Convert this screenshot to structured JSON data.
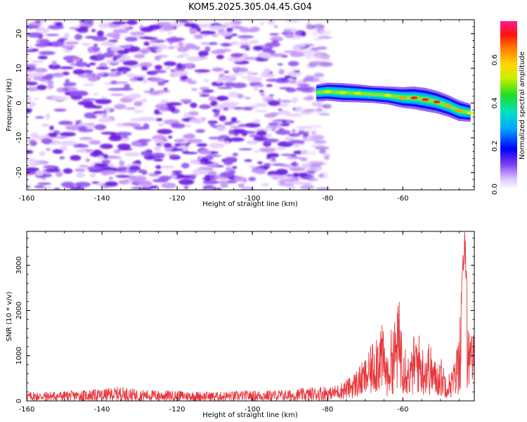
{
  "chart_data": [
    {
      "type": "heatmap",
      "title": "KOM5.2025.305.04.45.G04",
      "xlabel": "Height of straight line (km)",
      "ylabel": "Frequency (Hz)",
      "xlim": [
        -160,
        -41
      ],
      "ylim": [
        -25,
        24
      ],
      "x_ticks": [
        -160,
        -140,
        -120,
        -100,
        -80,
        -60
      ],
      "x_tick_labels": [
        "-160",
        "-140",
        "-120",
        "-100",
        "-80",
        "-60"
      ],
      "y_ticks": [
        -20,
        -10,
        0,
        10,
        20
      ],
      "y_tick_labels": [
        "-20",
        "-10",
        "0",
        "10",
        "20"
      ],
      "noise_region_x": [
        -160,
        -84
      ],
      "signal_ridge": {
        "x": [
          -83,
          -80,
          -76,
          -72,
          -68,
          -64,
          -60,
          -57,
          -54,
          -51,
          -48,
          -45,
          -42
        ],
        "y": [
          3,
          3.3,
          3,
          2.8,
          2.5,
          2.2,
          1.6,
          1.5,
          1,
          0.3,
          -0.8,
          -2.2,
          -2.8
        ],
        "amplitude": [
          0.3,
          0.4,
          0.45,
          0.4,
          0.35,
          0.4,
          0.55,
          0.65,
          0.7,
          0.65,
          0.6,
          0.55,
          0.4
        ]
      },
      "colorbar": {
        "label": "Normalized spectral amplitude",
        "range": [
          0,
          0.78
        ],
        "ticks": [
          0,
          0.2,
          0.4,
          0.6
        ],
        "tick_labels": [
          "0.0",
          "0.2",
          "0.4",
          "0.6"
        ]
      }
    },
    {
      "type": "line",
      "xlabel": "Height of straight line (km)",
      "ylabel": "SNR (10 * v/v)",
      "xlim": [
        -160,
        -41
      ],
      "ylim": [
        0,
        3750
      ],
      "x_ticks": [
        -160,
        -140,
        -120,
        -100,
        -80,
        -60
      ],
      "x_tick_labels": [
        "-160",
        "-140",
        "-120",
        "-100",
        "-80",
        "-60"
      ],
      "y_ticks": [
        0,
        1000,
        2000,
        3000
      ],
      "y_tick_labels": [
        "0",
        "1000",
        "2000",
        "3000"
      ],
      "color": "#e8383d",
      "series": [
        {
          "name": "SNR",
          "x": [
            -160,
            -150,
            -140,
            -135,
            -130,
            -120,
            -110,
            -100,
            -90,
            -85,
            -80,
            -77,
            -74,
            -71,
            -69,
            -67,
            -66,
            -65,
            -64,
            -63,
            -62,
            -61,
            -60,
            -59,
            -58,
            -57,
            -56,
            -55,
            -54,
            -53,
            -52,
            -51,
            -50,
            -49,
            -48,
            -47,
            -46,
            -45,
            -44.5,
            -44,
            -43.5,
            -43,
            -42.5,
            -42,
            -41.5,
            -41
          ],
          "y": [
            130,
            140,
            170,
            210,
            160,
            150,
            130,
            150,
            160,
            190,
            230,
            320,
            450,
            700,
            900,
            1400,
            1550,
            1250,
            800,
            1400,
            1550,
            1900,
            1500,
            1000,
            800,
            1250,
            1350,
            1050,
            1000,
            1150,
            850,
            700,
            850,
            650,
            500,
            600,
            800,
            1500,
            2300,
            3100,
            3600,
            2800,
            1500,
            1100,
            1650,
            1000
          ]
        }
      ]
    }
  ],
  "colors": {
    "noise_palette": [
      "#e6ccff",
      "#c393f7",
      "#9254ee",
      "#6a1be0"
    ],
    "line": "#e8383d",
    "frame": "#000000"
  }
}
